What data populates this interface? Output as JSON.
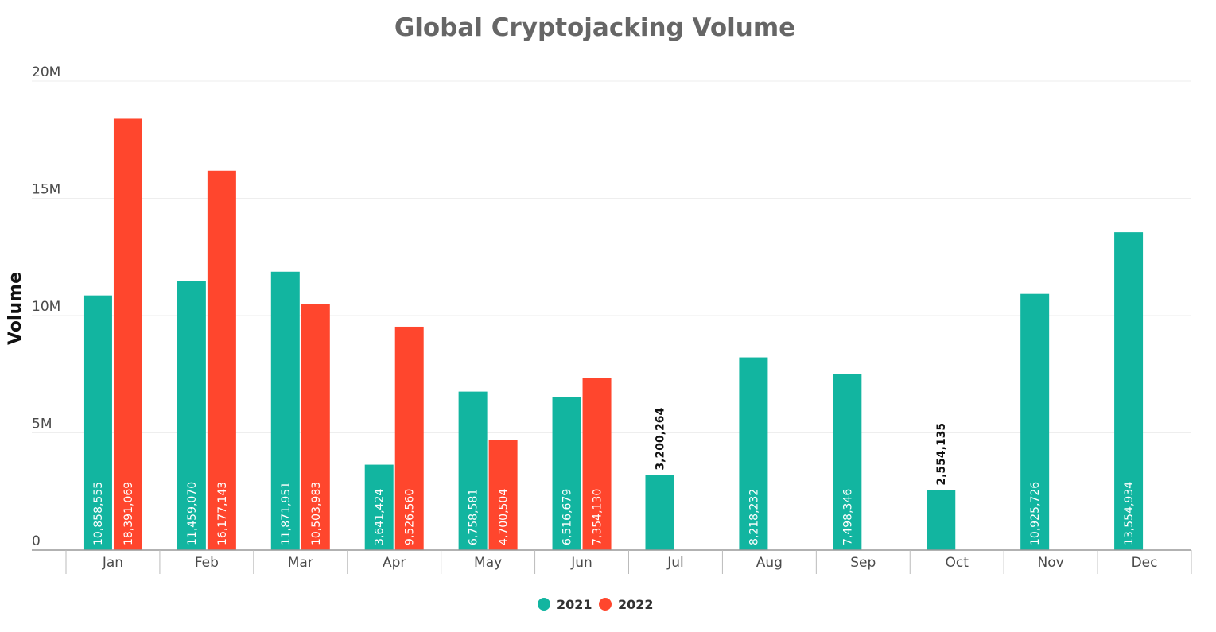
{
  "chart_data": {
    "type": "bar",
    "title": "Global Cryptojacking Volume",
    "xlabel": "",
    "ylabel": "Volume",
    "ylim": [
      0,
      20000000
    ],
    "yticks": [
      0,
      5000000,
      10000000,
      15000000,
      20000000
    ],
    "ytick_labels": [
      "0",
      "5M",
      "10M",
      "15M",
      "20M"
    ],
    "grid": true,
    "legend_position": "bottom-center",
    "categories": [
      "Jan",
      "Feb",
      "Mar",
      "Apr",
      "May",
      "Jun",
      "Jul",
      "Aug",
      "Sep",
      "Oct",
      "Nov",
      "Dec"
    ],
    "series": [
      {
        "name": "2021",
        "color": "#12b5a0",
        "values": [
          10858555,
          11459070,
          11871951,
          3641424,
          6758581,
          6516679,
          3200264,
          8218232,
          7498346,
          2554135,
          10925726,
          13554934
        ],
        "labels": [
          "10,858,555",
          "11,459,070",
          "11,871,951",
          "3,641,424",
          "6,758,581",
          "6,516,679",
          "3,200,264",
          "8,218,232",
          "7,498,346",
          "2,554,135",
          "10,925,726",
          "13,554,934"
        ]
      },
      {
        "name": "2022",
        "color": "#ff462d",
        "values": [
          18391069,
          16177143,
          10503983,
          9526560,
          4700504,
          7354130,
          null,
          null,
          null,
          null,
          null,
          null
        ],
        "labels": [
          "18,391,069",
          "16,177,143",
          "10,503,983",
          "9,526,560",
          "4,700,504",
          "7,354,130",
          null,
          null,
          null,
          null,
          null,
          null
        ]
      }
    ]
  }
}
